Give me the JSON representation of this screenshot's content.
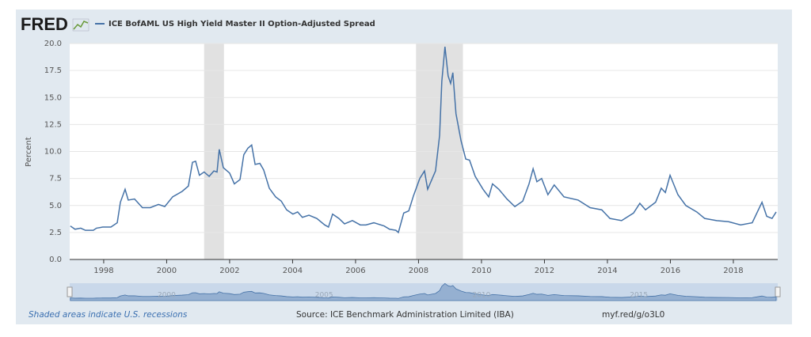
{
  "chart_data": {
    "type": "line",
    "logo": "FRED",
    "y_label": "Percent",
    "footer_note": "Shaded areas indicate U.S. recessions",
    "source": "Source: ICE Benchmark Administration Limited (IBA)",
    "link": "myf.red/g/o3L0",
    "xlim": [
      1996.92,
      2019.41
    ],
    "ylim": [
      0,
      20
    ],
    "xticks": [
      1998,
      2000,
      2002,
      2004,
      2006,
      2008,
      2010,
      2012,
      2014,
      2016,
      2018
    ],
    "yticks": [
      {
        "value": 0,
        "label": "0.0"
      },
      {
        "value": 2.5,
        "label": "2.5"
      },
      {
        "value": 5,
        "label": "5.0"
      },
      {
        "value": 7.5,
        "label": "7.5"
      },
      {
        "value": 10,
        "label": "10.0"
      },
      {
        "value": 12.5,
        "label": "12.5"
      },
      {
        "value": 15,
        "label": "15.0"
      },
      {
        "value": 17.5,
        "label": "17.5"
      },
      {
        "value": 20,
        "label": "20.0"
      }
    ],
    "navigator_ticks": [
      2000,
      2005,
      2010,
      2015
    ],
    "grid": true,
    "recessions": [
      [
        2001.19,
        2001.82
      ],
      [
        2007.92,
        2009.41
      ]
    ],
    "recession_color": "#e1e1e1",
    "x": [
      1996.94,
      1997.09,
      1997.27,
      1997.42,
      1997.67,
      1997.77,
      1997.97,
      1998.23,
      1998.43,
      1998.53,
      1998.68,
      1998.78,
      1998.98,
      1999.23,
      1999.48,
      1999.74,
      1999.94,
      2000.19,
      2000.49,
      2000.69,
      2000.82,
      2000.92,
      2001.04,
      2001.19,
      2001.35,
      2001.5,
      2001.6,
      2001.67,
      2001.8,
      2002.0,
      2002.15,
      2002.33,
      2002.45,
      2002.58,
      2002.7,
      2002.81,
      2002.96,
      2003.08,
      2003.26,
      2003.46,
      2003.64,
      2003.81,
      2004.01,
      2004.16,
      2004.31,
      2004.52,
      2004.77,
      2005.02,
      2005.14,
      2005.27,
      2005.47,
      2005.65,
      2005.9,
      2006.15,
      2006.33,
      2006.58,
      2006.91,
      2007.08,
      2007.28,
      2007.36,
      2007.53,
      2007.69,
      2007.84,
      2008.04,
      2008.19,
      2008.29,
      2008.54,
      2008.67,
      2008.74,
      2008.84,
      2008.94,
      2009.02,
      2009.09,
      2009.19,
      2009.35,
      2009.5,
      2009.62,
      2009.8,
      2010.05,
      2010.23,
      2010.35,
      2010.55,
      2010.81,
      2011.06,
      2011.31,
      2011.51,
      2011.64,
      2011.76,
      2011.91,
      2012.11,
      2012.31,
      2012.62,
      2013.07,
      2013.45,
      2013.82,
      2014.08,
      2014.45,
      2014.83,
      2015.03,
      2015.21,
      2015.53,
      2015.71,
      2015.84,
      2015.99,
      2016.24,
      2016.49,
      2016.84,
      2017.09,
      2017.47,
      2017.85,
      2018.23,
      2018.6,
      2018.91,
      2019.06,
      2019.23,
      2019.36
    ],
    "series": [
      {
        "name": "ICE BofAML US High Yield Master II Option-Adjusted Spread",
        "color": "#4572a7",
        "values": [
          3.1,
          2.8,
          2.9,
          2.7,
          2.7,
          2.9,
          3.0,
          3.0,
          3.4,
          5.3,
          6.5,
          5.5,
          5.6,
          4.8,
          4.8,
          5.1,
          4.9,
          5.8,
          6.3,
          6.8,
          9.0,
          9.1,
          7.8,
          8.1,
          7.7,
          8.2,
          8.1,
          10.2,
          8.5,
          8.0,
          7.0,
          7.4,
          9.7,
          10.3,
          10.6,
          8.8,
          8.9,
          8.3,
          6.6,
          5.8,
          5.4,
          4.6,
          4.2,
          4.4,
          3.9,
          4.1,
          3.8,
          3.2,
          3.0,
          4.2,
          3.8,
          3.3,
          3.6,
          3.2,
          3.2,
          3.4,
          3.1,
          2.8,
          2.7,
          2.5,
          4.3,
          4.5,
          5.9,
          7.5,
          8.2,
          6.5,
          8.2,
          11.5,
          16.5,
          19.7,
          17.0,
          16.3,
          17.3,
          13.5,
          11.0,
          9.3,
          9.2,
          7.7,
          6.5,
          5.8,
          7.0,
          6.5,
          5.6,
          4.9,
          5.4,
          7.0,
          8.4,
          7.2,
          7.5,
          6.0,
          6.9,
          5.8,
          5.5,
          4.8,
          4.6,
          3.8,
          3.6,
          4.3,
          5.2,
          4.6,
          5.3,
          6.6,
          6.2,
          7.8,
          6.0,
          5.0,
          4.4,
          3.8,
          3.6,
          3.5,
          3.2,
          3.4,
          5.3,
          4.0,
          3.8,
          4.4
        ]
      }
    ]
  }
}
